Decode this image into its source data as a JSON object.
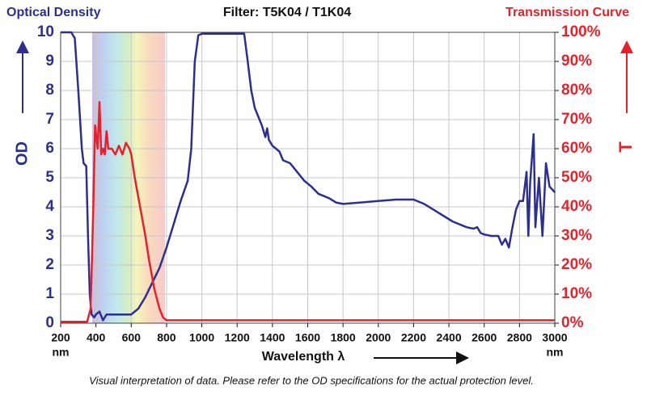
{
  "chart_data": {
    "type": "line",
    "title": "Filter: T5K04 / T1K04",
    "x_label": "Wavelength  λ",
    "x_unit": "nm",
    "y_label": "OD",
    "y2_label": "T",
    "footnote": "Visual interpretation of data. Please refer to the OD specifications for the actual protection level.",
    "xlim": [
      200,
      3000
    ],
    "xticks": [
      200,
      400,
      600,
      800,
      1000,
      1200,
      1400,
      1600,
      1800,
      2000,
      2200,
      2400,
      2600,
      2800,
      3000
    ],
    "ylim": [
      0,
      10
    ],
    "yticks": [
      0,
      1,
      2,
      3,
      4,
      5,
      6,
      7,
      8,
      9,
      10
    ],
    "y2lim": [
      0,
      100
    ],
    "y2ticks": [
      {
        "value": 0,
        "label": "0%"
      },
      {
        "value": 10,
        "label": "10%"
      },
      {
        "value": 20,
        "label": "20%"
      },
      {
        "value": 30,
        "label": "30%"
      },
      {
        "value": 40,
        "label": "40%"
      },
      {
        "value": 50,
        "label": "50%"
      },
      {
        "value": 60,
        "label": "60%"
      },
      {
        "value": 70,
        "label": "70%"
      },
      {
        "value": 80,
        "label": "80%"
      },
      {
        "value": 90,
        "label": "90%"
      },
      {
        "value": 100,
        "label": "100%"
      }
    ],
    "grid": true,
    "series": [
      {
        "name": "Optical Density",
        "color": "#2b2f8f",
        "x": [
          200,
          260,
          280,
          300,
          320,
          330,
          345,
          355,
          365,
          375,
          390,
          400,
          420,
          440,
          460,
          500,
          560,
          600,
          640,
          680,
          720,
          760,
          800,
          840,
          880,
          920,
          940,
          960,
          980,
          1000,
          1100,
          1200,
          1240,
          1260,
          1280,
          1300,
          1320,
          1340,
          1360,
          1370,
          1380,
          1400,
          1440,
          1460,
          1500,
          1540,
          1580,
          1620,
          1660,
          1720,
          1760,
          1800,
          1900,
          2000,
          2100,
          2200,
          2260,
          2340,
          2420,
          2500,
          2540,
          2560,
          2580,
          2600,
          2640,
          2680,
          2700,
          2720,
          2740,
          2760,
          2780,
          2800,
          2820,
          2840,
          2850,
          2860,
          2880,
          2890,
          2910,
          2930,
          2950,
          2970,
          3000
        ],
        "values": [
          10,
          10,
          9.8,
          8,
          6,
          5.5,
          5.4,
          3,
          1,
          0.3,
          0.2,
          0.3,
          0.4,
          0.1,
          0.3,
          0.3,
          0.3,
          0.3,
          0.5,
          0.9,
          1.4,
          1.9,
          2.6,
          3.4,
          4.2,
          4.9,
          6,
          9,
          9.9,
          9.95,
          9.95,
          9.95,
          9.95,
          9,
          8,
          7.4,
          7.1,
          6.8,
          6.4,
          6.7,
          6.3,
          6.1,
          5.9,
          5.6,
          5.5,
          5.2,
          4.9,
          4.7,
          4.45,
          4.3,
          4.15,
          4.1,
          4.15,
          4.2,
          4.25,
          4.25,
          4.1,
          3.8,
          3.5,
          3.3,
          3.25,
          3.3,
          3.1,
          3.05,
          3,
          3,
          2.7,
          2.9,
          2.6,
          3.3,
          3.9,
          4.2,
          4.2,
          5.2,
          3,
          4.8,
          6.5,
          3.3,
          5,
          3,
          5.5,
          4.7,
          4.5
        ]
      },
      {
        "name": "Transmission Curve",
        "color": "#e8202a",
        "axis": "y2",
        "x": [
          200,
          350,
          370,
          385,
          395,
          410,
          420,
          430,
          440,
          450,
          460,
          470,
          490,
          510,
          530,
          550,
          570,
          590,
          600,
          620,
          650,
          680,
          700,
          730,
          760,
          780,
          800,
          1200,
          3000
        ],
        "values": [
          0.5,
          0.5,
          5,
          40,
          68,
          60,
          76,
          58,
          60,
          58,
          66,
          60,
          60,
          58,
          61,
          58,
          62,
          60,
          58,
          50,
          40,
          30,
          22,
          12,
          5,
          2,
          1,
          1,
          1
        ]
      }
    ]
  }
}
